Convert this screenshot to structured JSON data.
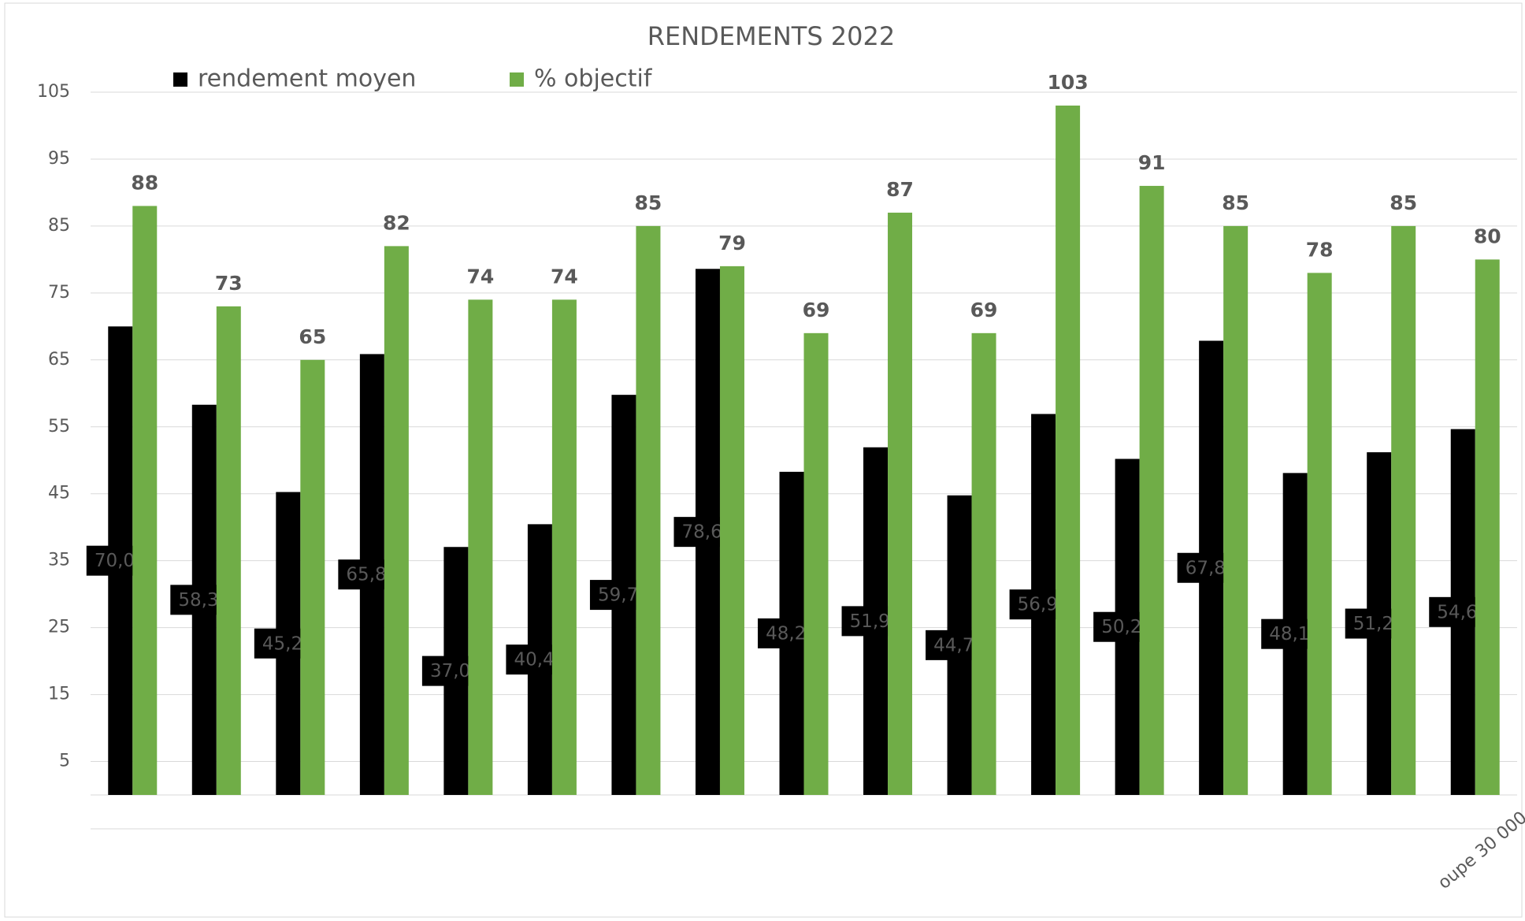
{
  "chart_data": {
    "type": "bar",
    "title": "RENDEMENTS 2022",
    "categories": [
      null,
      null,
      null,
      null,
      null,
      null,
      null,
      null,
      null,
      null,
      null,
      null,
      null,
      null,
      null,
      null,
      "oupe 30 000"
    ],
    "series": [
      {
        "name": "rendement moyen",
        "color": "#000000",
        "values": [
          70.0,
          58.3,
          45.26,
          65.87,
          37.05,
          40.45,
          59.78,
          78.6,
          48.28,
          51.94,
          44.76,
          56.92,
          50.21,
          67.86,
          48.1,
          51.2,
          54.66
        ],
        "value_labels": [
          "70,00",
          "58,30",
          "45,26",
          "65,87",
          "37,05",
          "40,45",
          "59,78",
          "78,60",
          "48,28",
          "51,94",
          "44,76",
          "56,92",
          "50,21",
          "67,86",
          "48,10",
          "51,20",
          "54,66"
        ]
      },
      {
        "name": "% objectif",
        "color": "#70ad47",
        "values": [
          88,
          73,
          65,
          82,
          74,
          74,
          85,
          79,
          69,
          87,
          69,
          103,
          91,
          85,
          78,
          85,
          80
        ]
      }
    ],
    "ylim": [
      0,
      105
    ],
    "yticks": [
      5,
      15,
      25,
      35,
      45,
      55,
      65,
      75,
      85,
      95,
      105
    ],
    "grid": true,
    "legend": "top"
  }
}
